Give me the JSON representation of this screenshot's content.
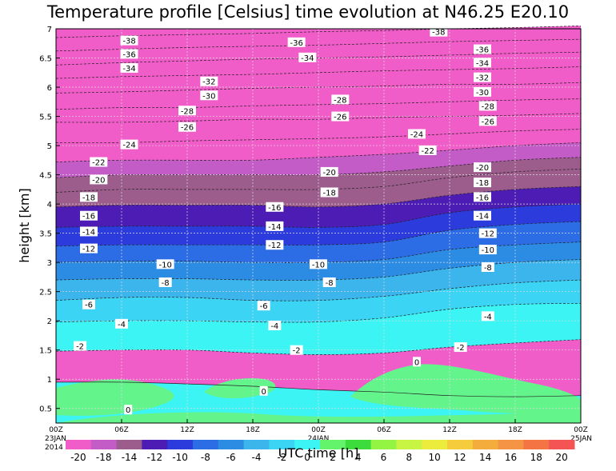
{
  "chart_data": {
    "type": "heatmap",
    "title": "Temperature profile [Celsius] time evolution at N46.25 E20.10",
    "xlabel": "UTC time [h]",
    "ylabel": "height [km]",
    "ylim": [
      0.25,
      7
    ],
    "y_ticks": [
      "0.5",
      "1",
      "1.5",
      "2",
      "2.5",
      "3",
      "3.5",
      "4",
      "4.5",
      "5",
      "5.5",
      "6",
      "6.5",
      "7"
    ],
    "y_tick_values": [
      0.5,
      1,
      1.5,
      2,
      2.5,
      3,
      3.5,
      4,
      4.5,
      5,
      5.5,
      6,
      6.5,
      7
    ],
    "xlim": [
      0,
      48
    ],
    "x_ticks": [
      "00Z",
      "06Z",
      "12Z",
      "18Z",
      "00Z",
      "06Z",
      "12Z",
      "18Z",
      "00Z"
    ],
    "x_tick_hours": [
      0,
      6,
      12,
      18,
      24,
      30,
      36,
      42,
      48
    ],
    "x_dates": [
      {
        "hour": 0,
        "line1": "23JAN",
        "line2": "2014"
      },
      {
        "hour": 24,
        "line1": "24JAN",
        "line2": ""
      },
      {
        "hour": 48,
        "line1": "25JAN",
        "line2": ""
      }
    ],
    "grid": true,
    "colorbar": {
      "tick_labels": [
        "-20",
        "-18",
        "-14",
        "-12",
        "-10",
        "-8",
        "-6",
        "-4",
        "-2",
        "0",
        "2",
        "4",
        "6",
        "8",
        "10",
        "12",
        "14",
        "16",
        "18",
        "20"
      ],
      "colors": [
        "#f05cc8",
        "#c45cc8",
        "#9c5c8c",
        "#4c1cb4",
        "#2c3cdc",
        "#2c6ce4",
        "#2c8ce4",
        "#3cb4ec",
        "#3cd4f4",
        "#3cf4f4",
        "#64f46c",
        "#3cdc3c",
        "#94f444",
        "#c8f444",
        "#ecec3c",
        "#f4cc3c",
        "#f4ac3c",
        "#f49444",
        "#f47444",
        "#f45454"
      ]
    },
    "levels": [
      -38,
      -36,
      -34,
      -32,
      -30,
      -28,
      -26,
      -24,
      -22,
      -20,
      -18,
      -16,
      -14,
      -12,
      -10,
      -8,
      -6,
      -4,
      -2,
      0
    ],
    "isotherms": [
      {
        "level": 0,
        "heights": [
          0.95,
          0.95,
          0.92,
          0.88,
          0.82,
          0.78,
          0.72,
          0.7,
          0.72
        ]
      },
      {
        "level": -2,
        "heights": [
          1.48,
          1.5,
          1.5,
          1.45,
          1.42,
          1.45,
          1.55,
          1.62,
          1.68
        ]
      },
      {
        "level": -4,
        "heights": [
          1.98,
          2.0,
          2.0,
          1.98,
          1.98,
          2.05,
          2.2,
          2.28,
          2.3
        ]
      },
      {
        "level": -6,
        "heights": [
          2.35,
          2.4,
          2.4,
          2.35,
          2.35,
          2.42,
          2.55,
          2.65,
          2.7
        ]
      },
      {
        "level": -8,
        "heights": [
          2.7,
          2.72,
          2.72,
          2.7,
          2.7,
          2.75,
          2.9,
          3.0,
          3.05
        ]
      },
      {
        "level": -10,
        "heights": [
          3.0,
          3.02,
          3.02,
          3.0,
          3.0,
          3.05,
          3.22,
          3.3,
          3.35
        ]
      },
      {
        "level": -12,
        "heights": [
          3.28,
          3.3,
          3.3,
          3.3,
          3.3,
          3.35,
          3.55,
          3.65,
          3.7
        ]
      },
      {
        "level": -14,
        "heights": [
          3.6,
          3.62,
          3.62,
          3.62,
          3.6,
          3.65,
          3.85,
          3.95,
          4.0
        ]
      },
      {
        "level": -16,
        "heights": [
          3.95,
          3.98,
          3.98,
          3.98,
          3.95,
          4.0,
          4.15,
          4.25,
          4.3
        ]
      },
      {
        "level": -18,
        "heights": [
          4.2,
          4.25,
          4.25,
          4.25,
          4.25,
          4.3,
          4.45,
          4.55,
          4.6
        ]
      },
      {
        "level": -20,
        "heights": [
          4.45,
          4.5,
          4.5,
          4.5,
          4.5,
          4.55,
          4.65,
          4.75,
          4.8
        ]
      },
      {
        "level": -22,
        "heights": [
          4.72,
          4.75,
          4.75,
          4.75,
          4.8,
          4.85,
          4.92,
          5.0,
          5.05
        ]
      },
      {
        "level": -24,
        "heights": [
          5.05,
          5.05,
          5.08,
          5.1,
          5.12,
          5.15,
          5.2,
          5.25,
          5.28
        ]
      },
      {
        "level": -26,
        "heights": [
          5.4,
          5.4,
          5.42,
          5.45,
          5.45,
          5.48,
          5.5,
          5.52,
          5.55
        ]
      },
      {
        "level": -28,
        "heights": [
          5.62,
          5.65,
          5.65,
          5.68,
          5.7,
          5.72,
          5.75,
          5.78,
          5.8
        ]
      },
      {
        "level": -30,
        "heights": [
          5.9,
          5.92,
          5.95,
          5.98,
          6.0,
          6.02,
          6.05,
          6.05,
          6.08
        ]
      },
      {
        "level": -32,
        "heights": [
          6.15,
          6.18,
          6.2,
          6.22,
          6.25,
          6.28,
          6.3,
          6.32,
          6.35
        ]
      },
      {
        "level": -34,
        "heights": [
          6.38,
          6.42,
          6.45,
          6.48,
          6.5,
          6.52,
          6.55,
          6.58,
          6.6
        ]
      },
      {
        "level": -36,
        "heights": [
          6.62,
          6.65,
          6.68,
          6.7,
          6.72,
          6.75,
          6.78,
          6.8,
          6.82
        ]
      },
      {
        "level": -38,
        "heights": [
          6.85,
          6.88,
          6.9,
          6.92,
          6.95,
          6.97,
          7.0,
          7.02,
          7.05
        ]
      }
    ],
    "contour_labels": [
      {
        "text": "-38",
        "x": 6.7,
        "y": 6.8
      },
      {
        "text": "-36",
        "x": 6.7,
        "y": 6.57
      },
      {
        "text": "-34",
        "x": 6.7,
        "y": 6.33
      },
      {
        "text": "-24",
        "x": 6.7,
        "y": 5.02
      },
      {
        "text": "-22",
        "x": 3.9,
        "y": 4.72
      },
      {
        "text": "-20",
        "x": 3.9,
        "y": 4.42
      },
      {
        "text": "-18",
        "x": 3.0,
        "y": 4.12
      },
      {
        "text": "-16",
        "x": 3.0,
        "y": 3.8
      },
      {
        "text": "-14",
        "x": 3.0,
        "y": 3.53
      },
      {
        "text": "-12",
        "x": 3.0,
        "y": 3.24
      },
      {
        "text": "-10",
        "x": 10.0,
        "y": 2.97
      },
      {
        "text": "-8",
        "x": 10.0,
        "y": 2.66
      },
      {
        "text": "-6",
        "x": 3.0,
        "y": 2.28
      },
      {
        "text": "-4",
        "x": 6.0,
        "y": 1.95
      },
      {
        "text": "-2",
        "x": 2.2,
        "y": 1.57
      },
      {
        "text": "-32",
        "x": 14.0,
        "y": 6.1
      },
      {
        "text": "-30",
        "x": 14.0,
        "y": 5.86
      },
      {
        "text": "-28",
        "x": 12.0,
        "y": 5.6
      },
      {
        "text": "-26",
        "x": 12.0,
        "y": 5.32
      },
      {
        "text": "-16",
        "x": 20.0,
        "y": 3.95
      },
      {
        "text": "-14",
        "x": 20.0,
        "y": 3.62
      },
      {
        "text": "-12",
        "x": 20.0,
        "y": 3.3
      },
      {
        "text": "-6",
        "x": 19.0,
        "y": 2.26
      },
      {
        "text": "-4",
        "x": 20.0,
        "y": 1.92
      },
      {
        "text": "-36",
        "x": 22.0,
        "y": 6.77
      },
      {
        "text": "-34",
        "x": 23.0,
        "y": 6.51
      },
      {
        "text": "-28",
        "x": 26.0,
        "y": 5.79
      },
      {
        "text": "-26",
        "x": 26.0,
        "y": 5.5
      },
      {
        "text": "-20",
        "x": 25.0,
        "y": 4.55
      },
      {
        "text": "-18",
        "x": 25.0,
        "y": 4.2
      },
      {
        "text": "-10",
        "x": 24.0,
        "y": 2.97
      },
      {
        "text": "-8",
        "x": 25.0,
        "y": 2.66
      },
      {
        "text": "-2",
        "x": 22.0,
        "y": 1.5
      },
      {
        "text": "-38",
        "x": 35.0,
        "y": 6.95
      },
      {
        "text": "-24",
        "x": 33.0,
        "y": 5.2
      },
      {
        "text": "-22",
        "x": 34.0,
        "y": 4.92
      },
      {
        "text": "0",
        "x": 33.0,
        "y": 1.3
      },
      {
        "text": "-2",
        "x": 37.0,
        "y": 1.55
      },
      {
        "text": "-36",
        "x": 39.0,
        "y": 6.65
      },
      {
        "text": "-34",
        "x": 39.0,
        "y": 6.42
      },
      {
        "text": "-32",
        "x": 39.0,
        "y": 6.17
      },
      {
        "text": "-30",
        "x": 39.0,
        "y": 5.92
      },
      {
        "text": "-28",
        "x": 39.5,
        "y": 5.68
      },
      {
        "text": "-26",
        "x": 39.5,
        "y": 5.42
      },
      {
        "text": "-20",
        "x": 39.0,
        "y": 4.63
      },
      {
        "text": "-18",
        "x": 39.0,
        "y": 4.37
      },
      {
        "text": "-16",
        "x": 39.0,
        "y": 4.12
      },
      {
        "text": "-14",
        "x": 39.0,
        "y": 3.8
      },
      {
        "text": "-12",
        "x": 39.5,
        "y": 3.5
      },
      {
        "text": "-10",
        "x": 39.5,
        "y": 3.22
      },
      {
        "text": "-8",
        "x": 39.5,
        "y": 2.92
      },
      {
        "text": "-4",
        "x": 39.5,
        "y": 2.08
      },
      {
        "text": "0",
        "x": 6.6,
        "y": 0.48
      },
      {
        "text": "0",
        "x": 19.0,
        "y": 0.8
      }
    ]
  }
}
